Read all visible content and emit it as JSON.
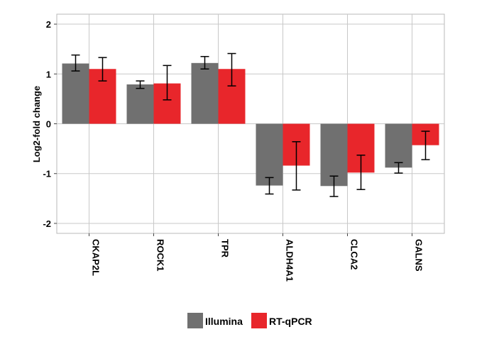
{
  "chart_data": {
    "type": "bar",
    "title": "",
    "xlabel": "",
    "ylabel": "Log2-fold change",
    "ylim": [
      -2.2,
      2.2
    ],
    "yticks": [
      2,
      1,
      0,
      -1,
      -2
    ],
    "ytick_labels": [
      "2",
      "1",
      "0",
      "-1",
      "-2"
    ],
    "grid": true,
    "legend_position": "bottom-center",
    "categories": [
      "CKAP2L",
      "ROCK1",
      "TPR",
      "ALDH4A1",
      "CLCA2",
      "GALNS"
    ],
    "series": [
      {
        "name": "Illumina",
        "color": "#707070",
        "values": [
          1.21,
          0.79,
          1.22,
          -1.24,
          -1.25,
          -0.88
        ],
        "err_low": [
          1.06,
          0.71,
          1.1,
          -1.41,
          -1.46,
          -0.99
        ],
        "err_high": [
          1.38,
          0.86,
          1.35,
          -1.08,
          -1.05,
          -0.78
        ]
      },
      {
        "name": "RT-qPCR",
        "color": "#e8262b",
        "values": [
          1.1,
          0.81,
          1.1,
          -0.84,
          -0.98,
          -0.43
        ],
        "err_low": [
          0.86,
          0.48,
          0.76,
          -1.33,
          -1.32,
          -0.72
        ],
        "err_high": [
          1.33,
          1.17,
          1.41,
          -0.36,
          -0.63,
          -0.15
        ]
      }
    ]
  }
}
